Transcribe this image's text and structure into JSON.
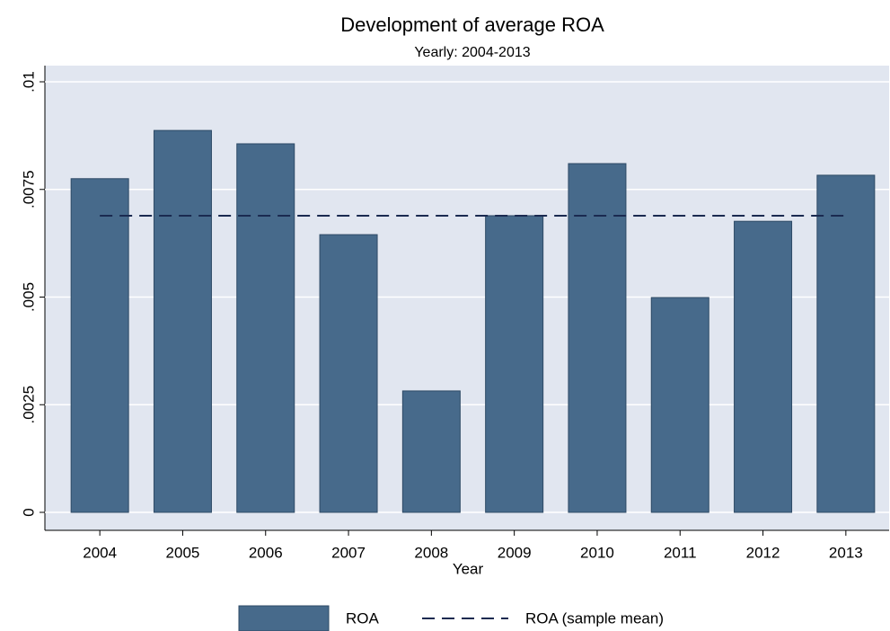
{
  "chart_data": {
    "type": "bar",
    "title": "Development of average ROA",
    "subtitle": "Yearly: 2004-2013",
    "x_label": "Year",
    "categories": [
      "2004",
      "2005",
      "2006",
      "2007",
      "2008",
      "2009",
      "2010",
      "2011",
      "2012",
      "2013"
    ],
    "series": [
      {
        "name": "ROA",
        "type": "bar",
        "color": "#476a8b",
        "values": [
          0.00775,
          0.00887,
          0.00856,
          0.00645,
          0.00282,
          0.00689,
          0.0081,
          0.00499,
          0.00676,
          0.00783
        ]
      },
      {
        "name": "ROA (sample mean)",
        "type": "line",
        "dashed": true,
        "color": "#1a2a50",
        "values": [
          0.00689,
          0.00689,
          0.00689,
          0.00689,
          0.00689,
          0.00689,
          0.00689,
          0.00689,
          0.00689,
          0.00689
        ]
      }
    ],
    "ylim": [
      0,
      0.01
    ],
    "yticks": [
      0,
      {
        "value": 0.0025,
        "label": ".0025"
      },
      {
        "value": 0.005,
        "label": ".005"
      },
      {
        "value": 0.0075,
        "label": ".0075"
      },
      {
        "value": 0.01,
        "label": ".01"
      }
    ],
    "grid": true,
    "legend": "bottom"
  }
}
